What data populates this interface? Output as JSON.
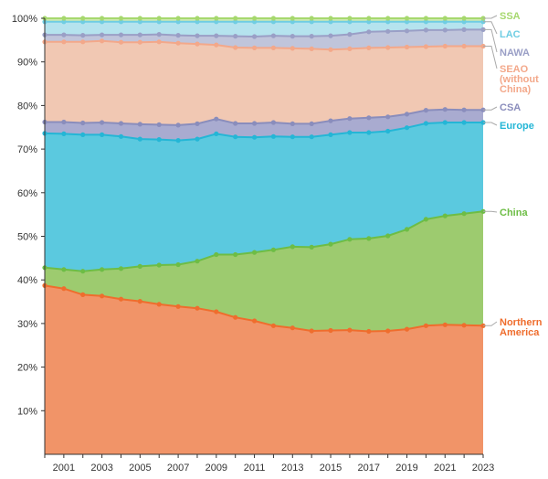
{
  "chart_data": {
    "type": "area",
    "stacked": true,
    "cumulative_percent": true,
    "x": [
      2000,
      2001,
      2002,
      2003,
      2004,
      2005,
      2006,
      2007,
      2008,
      2009,
      2010,
      2011,
      2012,
      2013,
      2014,
      2015,
      2016,
      2017,
      2018,
      2019,
      2020,
      2021,
      2022,
      2023
    ],
    "x_tick_labels": [
      "2001",
      "2003",
      "2005",
      "2007",
      "2009",
      "2011",
      "2013",
      "2015",
      "2017",
      "2019",
      "2021",
      "2023"
    ],
    "y_tick_labels": [
      "10%",
      "20%",
      "30%",
      "40%",
      "50%",
      "60%",
      "70%",
      "80%",
      "90%",
      "100%"
    ],
    "ylim": [
      0,
      100
    ],
    "grid": false,
    "legend_position": "right, at line ends",
    "series": [
      {
        "name": "Northern America",
        "color": "#ef6d2d",
        "fill": "#f19468",
        "values": [
          38.7,
          38.0,
          36.6,
          36.3,
          35.6,
          35.1,
          34.4,
          33.9,
          33.5,
          32.7,
          31.4,
          30.6,
          29.5,
          29.0,
          28.3,
          28.4,
          28.5,
          28.2,
          28.3,
          28.7,
          29.5,
          29.7,
          29.6,
          29.5
        ]
      },
      {
        "name": "China",
        "color": "#6dbd45",
        "fill": "#9dcb6f",
        "values": [
          42.8,
          42.4,
          42.0,
          42.4,
          42.6,
          43.1,
          43.4,
          43.5,
          44.3,
          45.8,
          45.8,
          46.3,
          46.9,
          47.6,
          47.5,
          48.2,
          49.3,
          49.5,
          50.1,
          51.6,
          53.9,
          54.7,
          55.2,
          55.7
        ]
      },
      {
        "name": "Europe",
        "color": "#24b6d6",
        "fill": "#5bc9df",
        "values": [
          73.6,
          73.5,
          73.3,
          73.3,
          72.9,
          72.3,
          72.2,
          72.0,
          72.3,
          73.5,
          72.8,
          72.7,
          72.9,
          72.8,
          72.8,
          73.3,
          73.8,
          73.8,
          74.1,
          74.9,
          75.9,
          76.1,
          76.1,
          76.1
        ]
      },
      {
        "name": "CSA",
        "color": "#8a8dbc",
        "fill": "#a9abd0",
        "values": [
          76.2,
          76.2,
          76.0,
          76.1,
          75.9,
          75.7,
          75.6,
          75.5,
          75.8,
          76.9,
          75.9,
          75.9,
          76.1,
          75.8,
          75.8,
          76.5,
          77.0,
          77.2,
          77.4,
          78.0,
          78.9,
          79.1,
          79.0,
          79.0
        ]
      },
      {
        "name": "SEAO (without China)",
        "color": "#f3a88a",
        "fill": "#f1c8b3",
        "values": [
          94.6,
          94.6,
          94.6,
          94.8,
          94.5,
          94.5,
          94.6,
          94.3,
          94.1,
          93.9,
          93.3,
          93.2,
          93.2,
          93.1,
          93.0,
          92.8,
          93.0,
          93.2,
          93.3,
          93.4,
          93.5,
          93.6,
          93.6,
          93.6
        ]
      },
      {
        "name": "NAWA",
        "color": "#9a9fc6",
        "fill": "#c0c5db",
        "values": [
          96.2,
          96.2,
          96.1,
          96.2,
          96.2,
          96.2,
          96.3,
          96.1,
          96.0,
          96.0,
          95.9,
          95.8,
          96.0,
          95.9,
          95.9,
          96.0,
          96.3,
          96.9,
          97.0,
          97.1,
          97.3,
          97.3,
          97.4,
          97.4
        ]
      },
      {
        "name": "LAC",
        "color": "#6fcde3",
        "fill": "#b5e3ee",
        "values": [
          99.2,
          99.2,
          99.2,
          99.2,
          99.2,
          99.2,
          99.2,
          99.2,
          99.2,
          99.2,
          99.2,
          99.2,
          99.2,
          99.2,
          99.2,
          99.2,
          99.2,
          99.2,
          99.2,
          99.2,
          99.2,
          99.2,
          99.2,
          99.2
        ]
      },
      {
        "name": "SSA",
        "color": "#a6d86e",
        "fill": "#cfe9b0",
        "values": [
          100,
          100,
          100,
          100,
          100,
          100,
          100,
          100,
          100,
          100,
          100,
          100,
          100,
          100,
          100,
          100,
          100,
          100,
          100,
          100,
          100,
          100,
          100,
          100
        ]
      }
    ]
  }
}
